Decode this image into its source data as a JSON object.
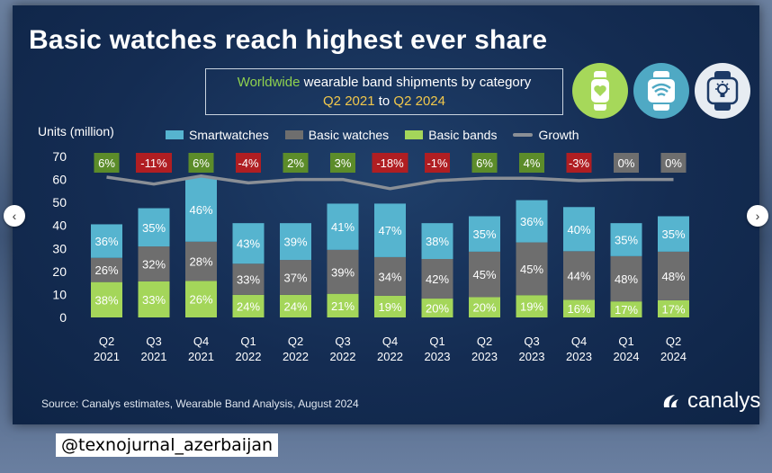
{
  "title": "Basic watches reach highest ever share",
  "subtitle": {
    "part1": "Worldwide",
    "part2": " wearable band shipments by category",
    "part3": "Q2 2021",
    "part4": " to ",
    "part5": "Q2 2024"
  },
  "icons": [
    "fitness-band-heart-icon",
    "smartwatch-wifi-icon",
    "smartwatch-lightbulb-icon"
  ],
  "source": "Source: Canalys estimates, Wearable Band Analysis, August 2024",
  "logo": "canalys",
  "watermark": "@texnojurnal_azerbaijan",
  "nav": {
    "left": "‹",
    "right": "›"
  },
  "colors": {
    "smartwatches": "#56b4cf",
    "basic_watches": "#6e6e6e",
    "basic_bands": "#a4d65a",
    "growth": "#8a8f96",
    "growth_pos": "#5c8c2a",
    "growth_neg": "#b01e22",
    "growth_zero": "#6e6e6e"
  },
  "chart_data": {
    "type": "bar",
    "stacked": true,
    "ylabel": "Units (million)",
    "ylim": [
      0,
      70
    ],
    "yticks": [
      0,
      10,
      20,
      30,
      40,
      50,
      60,
      70
    ],
    "categories": [
      [
        "Q2",
        "2021"
      ],
      [
        "Q3",
        "2021"
      ],
      [
        "Q4",
        "2021"
      ],
      [
        "Q1",
        "2022"
      ],
      [
        "Q2",
        "2022"
      ],
      [
        "Q3",
        "2022"
      ],
      [
        "Q4",
        "2022"
      ],
      [
        "Q1",
        "2023"
      ],
      [
        "Q2",
        "2023"
      ],
      [
        "Q3",
        "2023"
      ],
      [
        "Q4",
        "2023"
      ],
      [
        "Q1",
        "2024"
      ],
      [
        "Q2",
        "2024"
      ]
    ],
    "totals": [
      40.5,
      47.5,
      61,
      41,
      41,
      49,
      49.5,
      41,
      44,
      51,
      48,
      41,
      44
    ],
    "series": [
      {
        "name": "Basic bands",
        "color_key": "basic_bands",
        "shares": [
          38,
          33,
          26,
          24,
          24,
          21,
          19,
          20,
          20,
          19,
          16,
          17,
          17
        ]
      },
      {
        "name": "Basic watches",
        "color_key": "basic_watches",
        "shares": [
          26,
          32,
          28,
          33,
          37,
          39,
          34,
          42,
          45,
          45,
          44,
          48,
          48
        ]
      },
      {
        "name": "Smartwatches",
        "color_key": "smartwatches",
        "shares": [
          36,
          35,
          46,
          43,
          39,
          41,
          47,
          38,
          35,
          36,
          40,
          35,
          35
        ]
      }
    ],
    "growth": {
      "name": "Growth",
      "labels": [
        "6%",
        "-11%",
        "6%",
        "-4%",
        "2%",
        "3%",
        "-18%",
        "-1%",
        "6%",
        "4%",
        "-3%",
        "0%",
        "0%"
      ],
      "values": [
        6,
        -11,
        6,
        -4,
        2,
        3,
        -18,
        -1,
        6,
        4,
        -3,
        0,
        0
      ],
      "line_y": [
        61,
        58,
        61.5,
        58.5,
        60,
        60,
        56,
        59.5,
        60.5,
        60.5,
        59.5,
        60,
        60
      ]
    },
    "legend": "top"
  }
}
